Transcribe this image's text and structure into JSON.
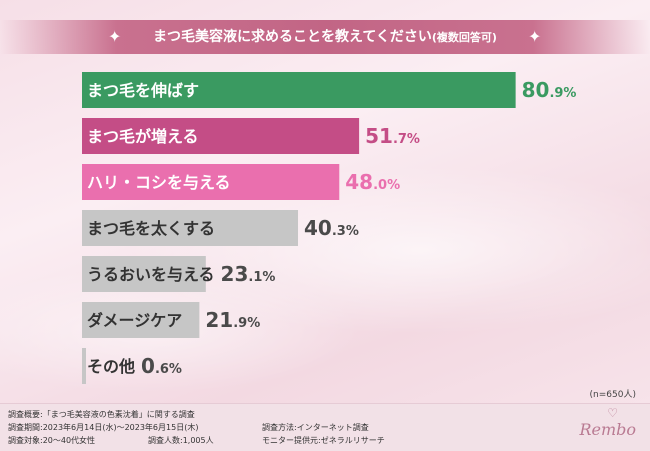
{
  "title": "まつ毛美容液に求めることを教えてください",
  "title_note": "(複数回答可)",
  "sample_note": "(n=650人)",
  "footer": {
    "overview": "調査概要:「まつ毛美容液の色素沈着」に関する調査",
    "period": "調査期間:2023年6月14日(水)〜2023年6月15日(木)",
    "method": "調査方法:インターネット調査",
    "target": "調査対象:20〜40代女性",
    "count": "調査人数:1,005人",
    "provider": "モニター提供元:ゼネラルリサーチ"
  },
  "logo": "Rembo",
  "colors": {
    "highlight1": "#3a9a61",
    "highlight2": "#c44d86",
    "highlight3": "#ea6fae",
    "gray": "#c6c6c6",
    "gray_text": "#4a4a4a"
  },
  "chart_data": {
    "type": "bar",
    "orientation": "horizontal",
    "unit": "%",
    "categories": [
      "まつ毛を伸ばす",
      "まつ毛が増える",
      "ハリ・コシを与える",
      "まつ毛を太くする",
      "うるおいを与える",
      "ダメージケア",
      "その他"
    ],
    "values": [
      80.9,
      51.7,
      48.0,
      40.3,
      23.1,
      21.9,
      0.6
    ],
    "value_labels": [
      "80.9",
      "51.7",
      "48.0",
      "40.3",
      "23.1",
      "21.9",
      "0.6"
    ],
    "xlim": [
      0,
      100
    ]
  }
}
